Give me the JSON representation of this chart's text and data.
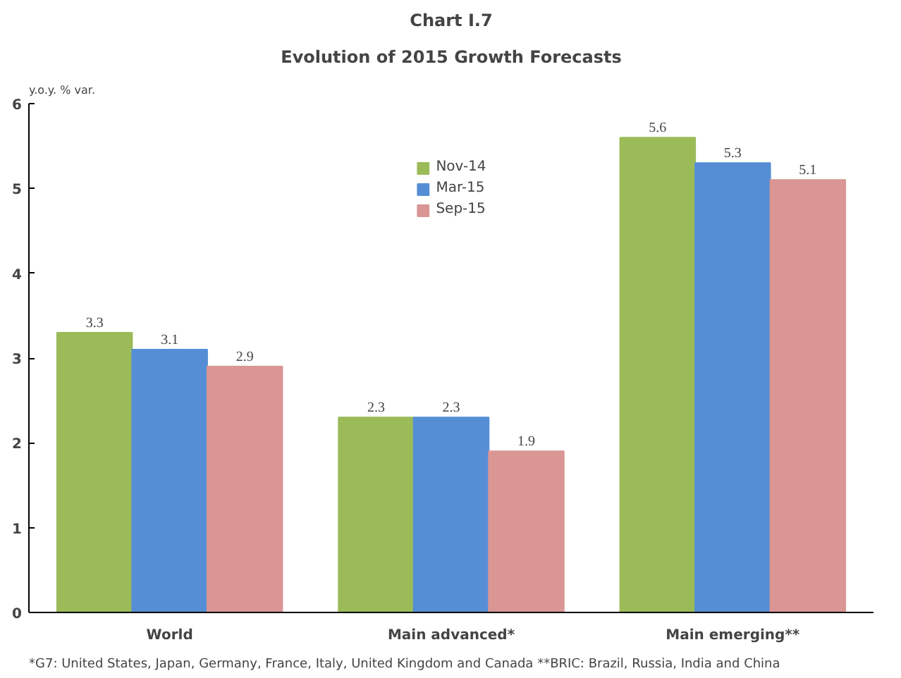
{
  "chart_data": {
    "type": "bar",
    "title": "Chart I.7",
    "subtitle": "Evolution of 2015 Growth Forecasts",
    "ylabel": "y.o.y. % var.",
    "categories": [
      "World",
      "Main advanced*",
      "Main emerging**"
    ],
    "series": [
      {
        "name": "Nov-14",
        "color": "#9bbb59",
        "values": [
          3.3,
          2.3,
          5.6
        ]
      },
      {
        "name": "Mar-15",
        "color": "#558ed5",
        "values": [
          3.1,
          2.3,
          5.3
        ]
      },
      {
        "name": "Sep-15",
        "color": "#d99694",
        "values": [
          2.9,
          1.9,
          5.1
        ]
      }
    ],
    "ylim": [
      0,
      6
    ],
    "yticks": [
      0,
      1,
      2,
      3,
      4,
      5,
      6
    ],
    "grid": false,
    "legend": "top",
    "data_labels": true,
    "annotations": [
      "*G7: United States, Japan, Germany, France, Italy, United Kingdom and Canada    **BRIC: Brazil, Russia, India and China"
    ]
  }
}
